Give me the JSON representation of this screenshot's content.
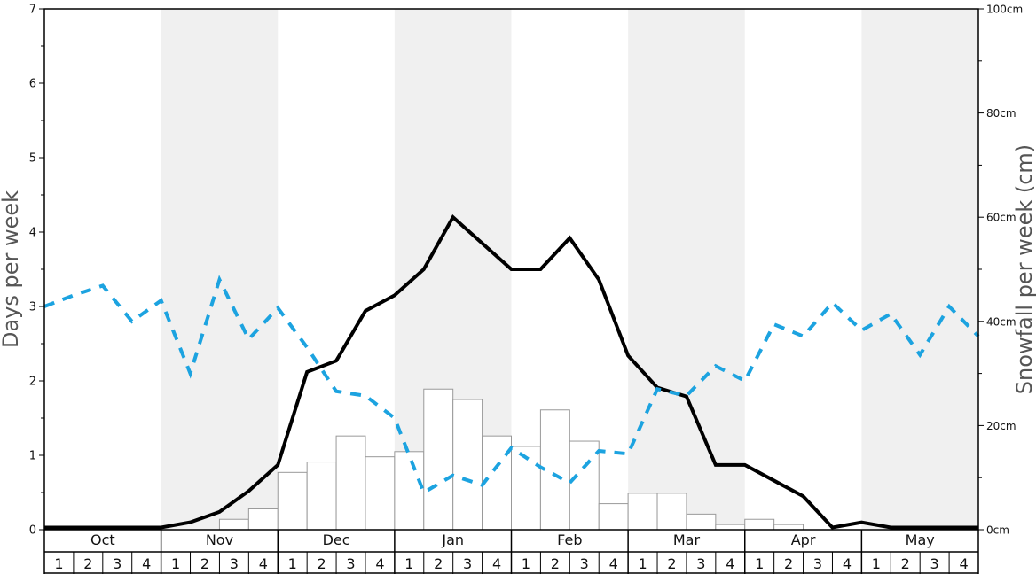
{
  "chart_data": {
    "type": "bar+line",
    "title": "",
    "ylabel_left": "Days per week",
    "ylabel_right": "Snowfall per week (cm)",
    "ylim_left": [
      0,
      7
    ],
    "ylim_right": [
      0,
      100
    ],
    "y_ticks_left": [
      "0",
      "1",
      "2",
      "3",
      "4",
      "5",
      "6",
      "7"
    ],
    "y_ticks_right": [
      "0cm",
      "20cm",
      "40cm",
      "60cm",
      "80cm",
      "100cm"
    ],
    "months": [
      "Oct",
      "Nov",
      "Dec",
      "Jan",
      "Feb",
      "Mar",
      "Apr",
      "May"
    ],
    "weeks": [
      "1",
      "2",
      "3",
      "4"
    ],
    "snowfall_cm": [
      0,
      0,
      0,
      0,
      0,
      0,
      2,
      4,
      11,
      13,
      18,
      14,
      15,
      27,
      25,
      18,
      16,
      23,
      17,
      5,
      7,
      7,
      3,
      1,
      2,
      1,
      0,
      0,
      0,
      0,
      0,
      0
    ],
    "series": [
      {
        "values": [
          0.03,
          0.03,
          0.03,
          0.03,
          0.03,
          0.1,
          0.24,
          0.52,
          0.87,
          2.12,
          2.27,
          2.94,
          3.15,
          3.5,
          4.2,
          3.85,
          3.5,
          3.5,
          3.92,
          3.36,
          2.34,
          1.91,
          1.79,
          0.87,
          0.87,
          0.66,
          0.45,
          0.03,
          0.1,
          0.03,
          0.03,
          0.03,
          0.03
        ]
      },
      {
        "values": [
          3.0,
          3.15,
          3.28,
          2.8,
          3.08,
          2.1,
          3.36,
          2.56,
          2.98,
          2.45,
          1.86,
          1.8,
          1.5,
          0.5,
          0.73,
          0.6,
          1.1,
          0.84,
          0.63,
          1.06,
          1.02,
          1.89,
          1.8,
          2.2,
          2.0,
          2.76,
          2.6,
          3.05,
          2.68,
          2.9,
          2.35,
          3.0,
          2.6
        ]
      }
    ],
    "colors": {
      "bars_fill": "#ffffff",
      "bars_stroke": "#999999",
      "line_solid": "#000000",
      "line_dashed": "#1ca3e0",
      "band": "#f0f0f0",
      "axis": "#000000"
    },
    "grid": false,
    "legend": "none"
  }
}
